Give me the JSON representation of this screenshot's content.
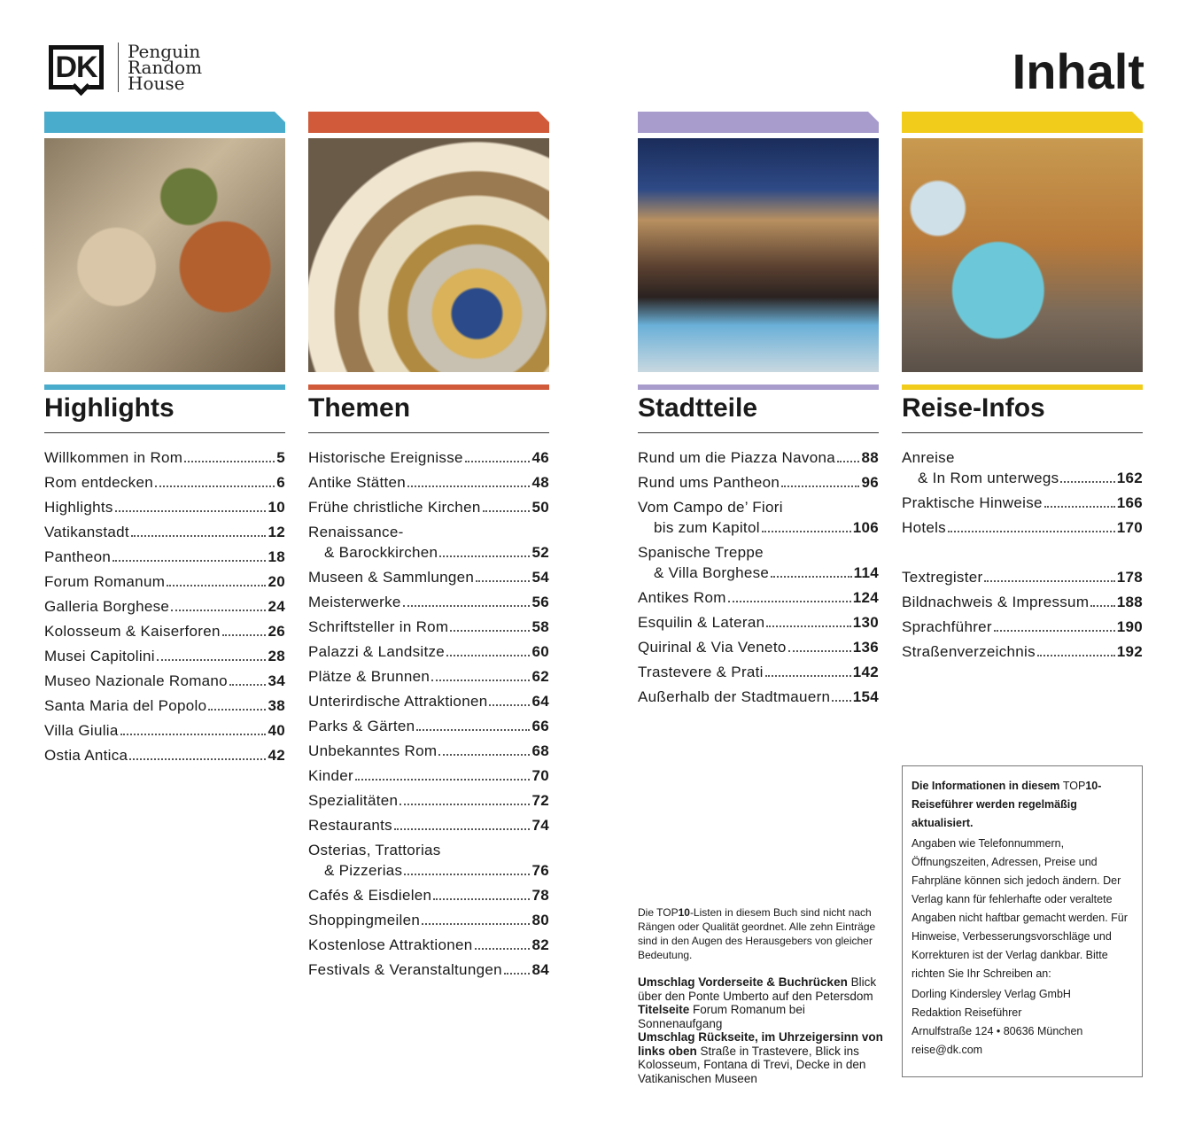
{
  "logo": {
    "mark": "DK",
    "publisher": [
      "Penguin",
      "Random",
      "House"
    ]
  },
  "title": "Inhalt",
  "colors": {
    "highlights": "#4aaccc",
    "themen": "#d05a3a",
    "stadtteile": "#a79ccc",
    "reise": "#f2cc1a"
  },
  "sections": [
    {
      "id": "highlights",
      "heading": "Highlights",
      "color": "#4aaccc",
      "image": "mosaic-theatre-masks",
      "entries": [
        {
          "lines": [
            "Willkommen in Rom"
          ],
          "page": "5"
        },
        {
          "lines": [
            "Rom entdecken"
          ],
          "page": "6"
        },
        {
          "lines": [
            "Highlights"
          ],
          "page": "10"
        },
        {
          "lines": [
            "Vatikanstadt"
          ],
          "page": "12"
        },
        {
          "lines": [
            "Pantheon"
          ],
          "page": "18"
        },
        {
          "lines": [
            "Forum Romanum"
          ],
          "page": "20"
        },
        {
          "lines": [
            "Galleria Borghese"
          ],
          "page": "24"
        },
        {
          "lines": [
            "Kolosseum & Kaiserforen"
          ],
          "page": "26"
        },
        {
          "lines": [
            "Musei Capitolini"
          ],
          "page": "28"
        },
        {
          "lines": [
            "Museo Nazionale Romano"
          ],
          "page": "34"
        },
        {
          "lines": [
            "Santa Maria del Popolo"
          ],
          "page": "38"
        },
        {
          "lines": [
            "Villa Giulia"
          ],
          "page": "40"
        },
        {
          "lines": [
            "Ostia Antica"
          ],
          "page": "42"
        }
      ]
    },
    {
      "id": "themen",
      "heading": "Themen",
      "color": "#d05a3a",
      "image": "spiral-staircase",
      "entries": [
        {
          "lines": [
            "Historische Ereignisse"
          ],
          "page": "46"
        },
        {
          "lines": [
            "Antike Stätten"
          ],
          "page": "48"
        },
        {
          "lines": [
            "Frühe christliche Kirchen"
          ],
          "page": "50"
        },
        {
          "lines": [
            "Renaissance-",
            "& Barockkirchen"
          ],
          "page": "52"
        },
        {
          "lines": [
            "Museen & Sammlungen"
          ],
          "page": "54"
        },
        {
          "lines": [
            "Meisterwerke"
          ],
          "page": "56"
        },
        {
          "lines": [
            "Schriftsteller in Rom"
          ],
          "page": "58"
        },
        {
          "lines": [
            "Palazzi & Landsitze"
          ],
          "page": "60"
        },
        {
          "lines": [
            "Plätze & Brunnen"
          ],
          "page": "62"
        },
        {
          "lines": [
            "Unterirdische Attraktionen"
          ],
          "page": "64"
        },
        {
          "lines": [
            "Parks & Gärten"
          ],
          "page": "66"
        },
        {
          "lines": [
            "Unbekanntes Rom"
          ],
          "page": "68"
        },
        {
          "lines": [
            "Kinder"
          ],
          "page": "70"
        },
        {
          "lines": [
            "Spezialitäten"
          ],
          "page": "72"
        },
        {
          "lines": [
            "Restaurants"
          ],
          "page": "74"
        },
        {
          "lines": [
            "Osterias, Trattorias",
            "& Pizzerias"
          ],
          "page": "76"
        },
        {
          "lines": [
            "Cafés & Eisdielen"
          ],
          "page": "78"
        },
        {
          "lines": [
            "Shoppingmeilen"
          ],
          "page": "80"
        },
        {
          "lines": [
            "Kostenlose Attraktionen"
          ],
          "page": "82"
        },
        {
          "lines": [
            "Festivals & Veranstaltungen"
          ],
          "page": "84"
        }
      ]
    },
    {
      "id": "stadtteile",
      "heading": "Stadtteile",
      "color": "#a79ccc",
      "image": "spanish-steps-night",
      "entries": [
        {
          "lines": [
            "Rund um die Piazza Navona"
          ],
          "page": "88"
        },
        {
          "lines": [
            "Rund ums Pantheon"
          ],
          "page": "96"
        },
        {
          "lines": [
            "Vom Campo de’ Fiori",
            "bis zum Kapitol"
          ],
          "page": "106"
        },
        {
          "lines": [
            "Spanische Treppe",
            "& Villa Borghese"
          ],
          "page": "114"
        },
        {
          "lines": [
            "Antikes Rom"
          ],
          "page": "124"
        },
        {
          "lines": [
            "Esquilin & Lateran"
          ],
          "page": "130"
        },
        {
          "lines": [
            "Quirinal & Via Veneto"
          ],
          "page": "136"
        },
        {
          "lines": [
            "Trastevere & Prati"
          ],
          "page": "142"
        },
        {
          "lines": [
            "Außerhalb der Stadtmauern"
          ],
          "page": "154"
        }
      ]
    },
    {
      "id": "reise",
      "heading": "Reise-Infos",
      "color": "#f2cc1a",
      "image": "vespa-street",
      "entries": [
        {
          "lines": [
            "Anreise",
            "& In Rom unterwegs"
          ],
          "page": "162"
        },
        {
          "lines": [
            "Praktische Hinweise"
          ],
          "page": "166"
        },
        {
          "lines": [
            "Hotels"
          ],
          "page": "170"
        },
        {
          "gap": true
        },
        {
          "lines": [
            "Textregister"
          ],
          "page": "178"
        },
        {
          "lines": [
            "Bildnachweis & Impressum"
          ],
          "page": "188"
        },
        {
          "lines": [
            "Sprachführer"
          ],
          "page": "190"
        },
        {
          "lines": [
            "Straßenverzeichnis"
          ],
          "page": "192"
        }
      ]
    }
  ],
  "note": {
    "pre": "Die ",
    "brand": "TOP",
    "ten": "10",
    "post": "-Listen in diesem Buch sind nicht nach Rängen oder Qualität geordnet. Alle zehn Einträge sind in den Augen des Herausgebers von gleicher Bedeutung."
  },
  "cover": [
    {
      "bold": "Umschlag Vorderseite & Buchrücken",
      "text": " Blick über den Ponte Umberto auf den Petersdom"
    },
    {
      "bold": "Titelseite",
      "text": " Forum Romanum bei Sonnenaufgang"
    },
    {
      "bold": "Umschlag Rückseite, im Uhrzeigersinn von links oben",
      "text": " Straße in Trastevere, Blick ins Kolosseum, Fontana di Trevi, Decke in den Vatikanischen Museen"
    }
  ],
  "infobox": {
    "headline_pre": "Die Informationen in diesem ",
    "headline_brand": "TOP",
    "headline_post": "10-Reiseführer werden regelmäßig aktualisiert.",
    "body": "Angaben wie Telefonnummern, Öffnungszeiten, Adressen, Preise und Fahrpläne können sich jedoch ändern. Der Verlag kann für fehlerhafte oder veraltete Angaben nicht haftbar gemacht werden. Für Hinweise, Verbesserungsvorschläge und Korrekturen ist der Verlag dankbar. Bitte richten Sie Ihr Schreiben an:",
    "address": [
      "Dorling Kindersley Verlag GmbH",
      "Redaktion Reiseführer",
      "Arnulfstraße 124 • 80636 München",
      "reise@dk.com"
    ]
  }
}
